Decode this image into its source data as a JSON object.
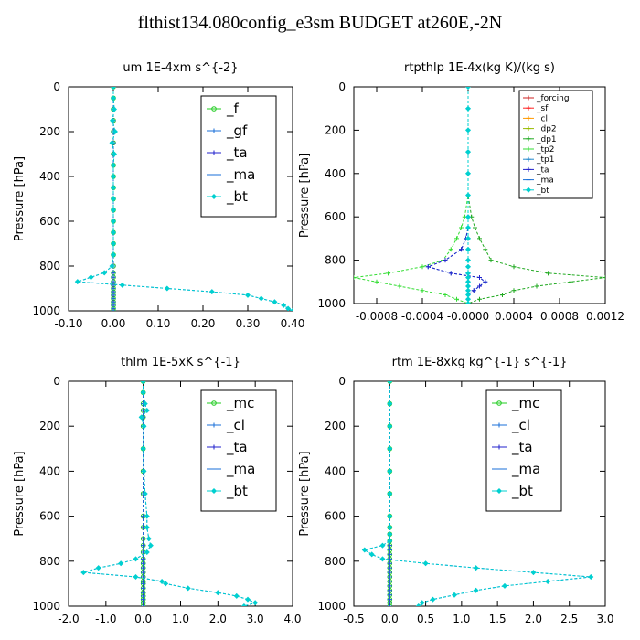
{
  "page_title": "flthist134.080config_e3sm  BUDGET at260E,-2N",
  "chart_data": [
    {
      "type": "line",
      "title": "um   1E-4xm s^{-2}",
      "ylabel": "Pressure [hPa]",
      "xlim": [
        -0.1,
        0.4
      ],
      "ylim": [
        1000,
        0
      ],
      "xticks": [
        "-0.10",
        "0.00",
        "0.10",
        "0.20",
        "0.30",
        "0.40"
      ],
      "xtick_values": [
        -0.1,
        0,
        0.1,
        0.2,
        0.3,
        0.4
      ],
      "yticks": [
        "0",
        "200",
        "400",
        "600",
        "800",
        "1000"
      ],
      "ytick_values": [
        0,
        200,
        400,
        600,
        800,
        1000
      ],
      "legend_style": "large",
      "pressure": [
        0,
        50,
        100,
        150,
        200,
        250,
        300,
        350,
        400,
        450,
        500,
        550,
        600,
        650,
        700,
        750,
        800,
        830,
        850,
        870,
        885,
        900,
        915,
        930,
        945,
        960,
        975,
        990,
        1000
      ],
      "series": [
        {
          "name": "_f",
          "color": "#22cc22",
          "marker": "circle",
          "values": [
            0,
            0,
            0,
            0,
            0,
            0,
            0,
            0,
            0,
            0,
            0,
            0,
            0,
            0,
            0,
            0,
            0,
            0,
            0,
            0,
            0,
            0,
            0,
            0,
            0,
            0,
            0,
            0,
            0
          ]
        },
        {
          "name": "_gf",
          "color": "#1a6fd8",
          "marker": "plus",
          "values": [
            0,
            0,
            0.002,
            -0.002,
            0.004,
            -0.003,
            0.002,
            0,
            0,
            0,
            0,
            0,
            0,
            0,
            0,
            0,
            -0.003,
            -0.02,
            -0.05,
            -0.08,
            0.02,
            0.12,
            0.22,
            0.3,
            0.33,
            0.36,
            0.38,
            0.39,
            0.4
          ]
        },
        {
          "name": "_ta",
          "color": "#2222cc",
          "marker": "plus",
          "values": [
            0,
            0,
            0,
            0,
            0,
            0,
            0,
            0,
            0,
            0,
            0,
            0,
            0,
            0,
            0,
            0,
            0,
            0,
            0,
            0,
            0,
            0,
            0,
            0,
            0,
            0,
            0,
            0,
            0
          ]
        },
        {
          "name": "_ma",
          "color": "#1a6fd8",
          "marker": "dash",
          "values": [
            0,
            0,
            0,
            0,
            0,
            0,
            0,
            0,
            0,
            0,
            0,
            0,
            0,
            0,
            0,
            0,
            0,
            0,
            0,
            0,
            0,
            0,
            0,
            0,
            0,
            0,
            0,
            0,
            0
          ]
        },
        {
          "name": "_bt",
          "color": "#00d0d0",
          "marker": "diamond",
          "values": [
            0,
            0,
            0.002,
            -0.002,
            0.004,
            -0.003,
            0.002,
            0,
            0,
            0,
            0,
            0,
            0,
            0,
            0,
            0,
            -0.003,
            -0.02,
            -0.05,
            -0.08,
            0.02,
            0.12,
            0.22,
            0.3,
            0.33,
            0.36,
            0.38,
            0.39,
            0.4
          ]
        }
      ]
    },
    {
      "type": "line",
      "title": "rtpthlp   1E-4x(kg K)/(kg s)",
      "ylabel": "Pressure [hPa]",
      "xlim": [
        -0.001,
        0.0012
      ],
      "ylim": [
        1000,
        0
      ],
      "xticks": [
        "-0.0008",
        "-0.0004",
        "-0.0000",
        "0.0004",
        "0.0008",
        "0.0012"
      ],
      "xtick_values": [
        -0.0008,
        -0.0004,
        0,
        0.0004,
        0.0008,
        0.0012
      ],
      "yticks": [
        "0",
        "200",
        "400",
        "600",
        "800",
        "1000"
      ],
      "ytick_values": [
        0,
        200,
        400,
        600,
        800,
        1000
      ],
      "legend_style": "small",
      "pressure": [
        0,
        100,
        200,
        300,
        400,
        500,
        600,
        650,
        700,
        750,
        800,
        830,
        860,
        880,
        900,
        920,
        940,
        960,
        980,
        1000
      ],
      "series": [
        {
          "name": "_forcing",
          "color": "#cc2222",
          "marker": "plus",
          "values": [
            0,
            0,
            0,
            0,
            0,
            0,
            0,
            0,
            0,
            0,
            0,
            0,
            0,
            0,
            0,
            0,
            0,
            0,
            0,
            0
          ]
        },
        {
          "name": "_sf",
          "color": "#ff2222",
          "marker": "plus",
          "values": [
            0,
            0,
            0,
            0,
            0,
            0,
            0,
            0,
            0,
            0,
            0,
            0,
            0,
            0,
            0,
            0,
            0,
            0,
            0,
            0
          ]
        },
        {
          "name": "_cl",
          "color": "#ff9900",
          "marker": "plus",
          "values": [
            0,
            0,
            0,
            0,
            0,
            0,
            0,
            0,
            0,
            0,
            0,
            0,
            0,
            0,
            0,
            0,
            0,
            0,
            0,
            0
          ]
        },
        {
          "name": "_dp2",
          "color": "#99bb00",
          "marker": "plus",
          "values": [
            0,
            0,
            0,
            0,
            0,
            0,
            0,
            0,
            0,
            0,
            0,
            0,
            0,
            0,
            0,
            0,
            0,
            0,
            0,
            0
          ]
        },
        {
          "name": "_dp1",
          "color": "#22aa22",
          "marker": "plus",
          "values": [
            0,
            0,
            0,
            0,
            0,
            0,
            3e-05,
            6e-05,
            0.0001,
            0.00015,
            0.0002,
            0.0004,
            0.0007,
            0.0012,
            0.0009,
            0.0006,
            0.0004,
            0.0003,
            0.0001,
            0
          ]
        },
        {
          "name": "_tp2",
          "color": "#33dd33",
          "marker": "plus",
          "values": [
            0,
            0,
            0,
            0,
            0,
            0,
            -3e-05,
            -6e-05,
            -0.0001,
            -0.00015,
            -0.00022,
            -0.0004,
            -0.0007,
            -0.001,
            -0.0008,
            -0.0006,
            -0.0004,
            -0.0002,
            -0.0001,
            0
          ]
        },
        {
          "name": "_tp1",
          "color": "#2288cc",
          "marker": "plus",
          "values": [
            0,
            0,
            0,
            0,
            0,
            0,
            0,
            0,
            -2e-05,
            -6e-05,
            -0.0002,
            -0.00035,
            -0.00015,
            0.0001,
            0.00015,
            0.0001,
            5e-05,
            0,
            0,
            0
          ]
        },
        {
          "name": "_ta",
          "color": "#2222cc",
          "marker": "plus",
          "values": [
            0,
            0,
            0,
            0,
            0,
            0,
            0,
            0,
            -2e-05,
            -6e-05,
            -0.0002,
            -0.00035,
            -0.00015,
            0.0001,
            0.00015,
            0.0001,
            5e-05,
            0,
            0,
            0
          ]
        },
        {
          "name": "_ma",
          "color": "#1a6fd8",
          "marker": "dash",
          "values": [
            0,
            0,
            0,
            0,
            0,
            0,
            0,
            0,
            0,
            0,
            0,
            0,
            0,
            0,
            0,
            0,
            0,
            0,
            0,
            0
          ]
        },
        {
          "name": "_bt",
          "color": "#00d0d0",
          "marker": "diamond",
          "values": [
            0,
            0,
            0,
            0,
            0,
            0,
            0,
            0,
            0,
            0,
            0,
            0,
            0,
            0,
            0,
            0,
            0,
            0,
            0,
            0
          ]
        }
      ]
    },
    {
      "type": "line",
      "title": "thlm   1E-5xK s^{-1}",
      "ylabel": "Pressure [hPa]",
      "xlim": [
        -2.0,
        4.0
      ],
      "ylim": [
        1000,
        0
      ],
      "xticks": [
        "-2.0",
        "-1.0",
        "0.0",
        "1.0",
        "2.0",
        "3.0",
        "4.0"
      ],
      "xtick_values": [
        -2,
        -1,
        0,
        1,
        2,
        3,
        4
      ],
      "yticks": [
        "0",
        "200",
        "400",
        "600",
        "800",
        "1000"
      ],
      "ytick_values": [
        0,
        200,
        400,
        600,
        800,
        1000
      ],
      "legend_style": "large",
      "pressure": [
        0,
        50,
        100,
        130,
        160,
        200,
        300,
        400,
        500,
        600,
        650,
        700,
        730,
        760,
        790,
        810,
        830,
        850,
        870,
        890,
        900,
        920,
        940,
        955,
        970,
        985,
        1000
      ],
      "series": [
        {
          "name": "_mc",
          "color": "#22cc22",
          "marker": "circle",
          "values": [
            0,
            0,
            0,
            0,
            0,
            0,
            0,
            0,
            0,
            0,
            0,
            0,
            0,
            0,
            0,
            0,
            0,
            0,
            0,
            0,
            0,
            0,
            0,
            0,
            0,
            0,
            0
          ]
        },
        {
          "name": "_cl",
          "color": "#1a6fd8",
          "marker": "plus",
          "values": [
            0,
            0,
            0.05,
            0.1,
            -0.05,
            0.02,
            0,
            0.02,
            0.05,
            0.1,
            0.1,
            0.15,
            0.2,
            0.1,
            -0.2,
            -0.6,
            -1.2,
            -1.6,
            -0.2,
            0.5,
            0.6,
            1.2,
            2.0,
            2.5,
            2.8,
            3.0,
            2.7
          ]
        },
        {
          "name": "_ta",
          "color": "#2222cc",
          "marker": "plus",
          "values": [
            0,
            0,
            0,
            0,
            0,
            0,
            0,
            0,
            0,
            0,
            0,
            0,
            0,
            0,
            0,
            0,
            0,
            0,
            0,
            0,
            0,
            0,
            0,
            0,
            0,
            0,
            0
          ]
        },
        {
          "name": "_ma",
          "color": "#1a6fd8",
          "marker": "dash",
          "values": [
            0,
            0,
            0,
            0,
            0,
            0,
            0,
            0,
            0,
            0,
            0,
            0,
            0,
            0,
            0,
            0,
            0,
            0,
            0,
            0,
            0,
            0,
            0,
            0,
            0,
            0,
            0
          ]
        },
        {
          "name": "_bt",
          "color": "#00d0d0",
          "marker": "diamond",
          "values": [
            0,
            0,
            0.05,
            0.1,
            -0.05,
            0.02,
            0,
            0.02,
            0.05,
            0.1,
            0.1,
            0.15,
            0.2,
            0.1,
            -0.2,
            -0.6,
            -1.2,
            -1.6,
            -0.2,
            0.5,
            0.6,
            1.2,
            2.0,
            2.5,
            2.8,
            3.0,
            2.7
          ]
        }
      ]
    },
    {
      "type": "line",
      "title": "rtm   1E-8xkg kg^{-1} s^{-1}",
      "ylabel": "Pressure [hPa]",
      "xlim": [
        -0.5,
        3.0
      ],
      "ylim": [
        1000,
        0
      ],
      "xticks": [
        "-0.5",
        "0.0",
        "0.5",
        "1.0",
        "1.5",
        "2.0",
        "2.5",
        "3.0"
      ],
      "xtick_values": [
        -0.5,
        0,
        0.5,
        1,
        1.5,
        2,
        2.5,
        3
      ],
      "yticks": [
        "0",
        "200",
        "400",
        "600",
        "800",
        "1000"
      ],
      "ytick_values": [
        0,
        200,
        400,
        600,
        800,
        1000
      ],
      "legend_style": "large",
      "pressure": [
        0,
        100,
        200,
        300,
        400,
        500,
        600,
        650,
        680,
        710,
        730,
        750,
        770,
        790,
        810,
        830,
        850,
        870,
        890,
        910,
        930,
        950,
        970,
        985,
        1000
      ],
      "series": [
        {
          "name": "_mc",
          "color": "#22cc22",
          "marker": "circle",
          "values": [
            0,
            0,
            0,
            0,
            0,
            0,
            0,
            0,
            0,
            0,
            0,
            0,
            0,
            0,
            0,
            0,
            0,
            0,
            0,
            0,
            0,
            0,
            0,
            0,
            0
          ]
        },
        {
          "name": "_cl",
          "color": "#1a6fd8",
          "marker": "plus",
          "values": [
            0,
            0,
            0,
            0,
            0,
            0,
            0,
            0,
            0,
            0,
            -0.1,
            -0.35,
            -0.25,
            -0.1,
            0.5,
            1.2,
            2.0,
            2.8,
            2.2,
            1.6,
            1.2,
            0.9,
            0.6,
            0.45,
            0.4
          ]
        },
        {
          "name": "_ta",
          "color": "#2222cc",
          "marker": "plus",
          "values": [
            0,
            0,
            0,
            0,
            0,
            0,
            0,
            0,
            0,
            0,
            0,
            0,
            0,
            0,
            0,
            0,
            0,
            0,
            0,
            0,
            0,
            0,
            0,
            0,
            0
          ]
        },
        {
          "name": "_ma",
          "color": "#1a6fd8",
          "marker": "dash",
          "values": [
            0,
            0,
            0,
            0,
            0,
            0,
            0,
            0,
            0,
            0,
            0,
            0,
            0,
            0,
            0,
            0,
            0,
            0,
            0,
            0,
            0,
            0,
            0,
            0,
            0
          ]
        },
        {
          "name": "_bt",
          "color": "#00d0d0",
          "marker": "diamond",
          "values": [
            0,
            0,
            0,
            0,
            0,
            0,
            0,
            0,
            0,
            0,
            -0.1,
            -0.35,
            -0.25,
            -0.1,
            0.5,
            1.2,
            2.0,
            2.8,
            2.2,
            1.6,
            1.2,
            0.9,
            0.6,
            0.45,
            0.4
          ]
        }
      ]
    }
  ]
}
